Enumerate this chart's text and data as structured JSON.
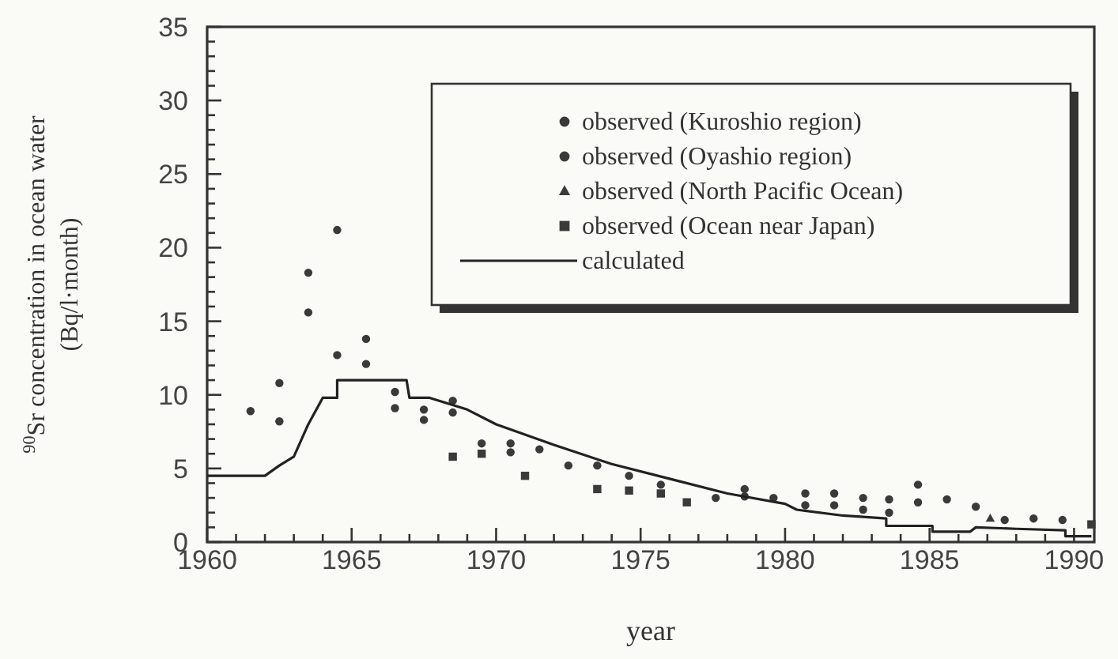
{
  "chart_data": {
    "type": "scatter",
    "xlabel": "year",
    "ylabel": "$^{90}$Sr concentration in ocean water\n(Bq/l·month)",
    "xlim": [
      1960,
      1990.7
    ],
    "ylim": [
      0,
      35
    ],
    "xticks": [
      1960,
      {
        "value": 1961,
        "label": null
      },
      {
        "value": 1962,
        "label": null
      },
      {
        "value": 1963,
        "label": null
      },
      {
        "value": 1964,
        "label": null
      },
      1965,
      {
        "value": 1966,
        "label": null
      },
      {
        "value": 1967,
        "label": null
      },
      {
        "value": 1968,
        "label": null
      },
      {
        "value": 1969,
        "label": null
      },
      1970,
      {
        "value": 1971,
        "label": null
      },
      {
        "value": 1972,
        "label": null
      },
      {
        "value": 1973,
        "label": null
      },
      {
        "value": 1974,
        "label": null
      },
      1975,
      {
        "value": 1976,
        "label": null
      },
      {
        "value": 1977,
        "label": null
      },
      {
        "value": 1978,
        "label": null
      },
      {
        "value": 1979,
        "label": null
      },
      1980,
      {
        "value": 1981,
        "label": null
      },
      {
        "value": 1982,
        "label": null
      },
      {
        "value": 1983,
        "label": null
      },
      {
        "value": 1984,
        "label": null
      },
      1985,
      {
        "value": 1986,
        "label": null
      },
      {
        "value": 1987,
        "label": null
      },
      {
        "value": 1988,
        "label": null
      },
      {
        "value": 1989,
        "label": null
      },
      1990
    ],
    "yticks": [
      0,
      {
        "value": 1,
        "label": null
      },
      {
        "value": 2,
        "label": null
      },
      {
        "value": 3,
        "label": null
      },
      {
        "value": 4,
        "label": null
      },
      5,
      {
        "value": 6,
        "label": null
      },
      {
        "value": 7,
        "label": null
      },
      {
        "value": 8,
        "label": null
      },
      {
        "value": 9,
        "label": null
      },
      10,
      {
        "value": 11,
        "label": null
      },
      {
        "value": 12,
        "label": null
      },
      {
        "value": 13,
        "label": null
      },
      {
        "value": 14,
        "label": null
      },
      15,
      {
        "value": 16,
        "label": null
      },
      {
        "value": 17,
        "label": null
      },
      {
        "value": 18,
        "label": null
      },
      {
        "value": 19,
        "label": null
      },
      20,
      {
        "value": 21,
        "label": null
      },
      {
        "value": 22,
        "label": null
      },
      {
        "value": 23,
        "label": null
      },
      {
        "value": 24,
        "label": null
      },
      25,
      {
        "value": 26,
        "label": null
      },
      {
        "value": 27,
        "label": null
      },
      {
        "value": 28,
        "label": null
      },
      {
        "value": 29,
        "label": null
      },
      30,
      {
        "value": 31,
        "label": null
      },
      {
        "value": 32,
        "label": null
      },
      {
        "value": 33,
        "label": null
      },
      {
        "value": 34,
        "label": null
      },
      35
    ],
    "grid": false,
    "legend": "top right",
    "series": [
      {
        "name": "observed (Kuroshio region)",
        "color": "#3a3a3a",
        "marker": "circle",
        "x": [
          1961.5,
          1962.5,
          1963.5,
          1964.5,
          1965.5,
          1966.5,
          1967.5,
          1968.5,
          1969.5,
          1970.5,
          1971.5,
          1972.5,
          1973.5,
          1974.6,
          1975.7,
          1977.6,
          1978.6,
          1979.6,
          1980.7,
          1981.7,
          1982.7,
          1983.6,
          1984.6,
          1985.6,
          1986.6,
          1988.6
        ],
        "values": [
          8.9,
          10.8,
          18.3,
          21.2,
          13.8,
          10.2,
          9.0,
          9.6,
          6.7,
          6.7,
          6.3,
          5.2,
          5.2,
          4.5,
          3.9,
          3.0,
          3.6,
          3.0,
          3.3,
          3.3,
          3.0,
          2.9,
          3.9,
          2.9,
          2.4,
          1.6
        ]
      },
      {
        "name": "observed (Oyashio region)",
        "color": "#3a3a3a",
        "marker": "circle",
        "x": [
          1962.5,
          1963.5,
          1964.5,
          1965.5,
          1966.5,
          1967.5,
          1968.5,
          1970.5,
          1978.6,
          1980.7,
          1981.7,
          1982.7,
          1983.6,
          1984.6,
          1987.6,
          1989.6
        ],
        "values": [
          8.2,
          15.6,
          12.7,
          12.1,
          9.1,
          8.3,
          8.8,
          6.1,
          3.1,
          2.5,
          2.5,
          2.2,
          2.0,
          2.7,
          1.5,
          1.5
        ]
      },
      {
        "name": "observed (North Pacific Ocean)",
        "color": "#3a3a3a",
        "marker": "triangle",
        "x": [
          1987.1
        ],
        "values": [
          1.6
        ]
      },
      {
        "name": "observed (Ocean near Japan)",
        "color": "#3a3a3a",
        "marker": "square",
        "x": [
          1968.5,
          1969.5,
          1971,
          1973.5,
          1974.6,
          1975.7,
          1976.6,
          1990.6
        ],
        "values": [
          5.8,
          6.0,
          4.5,
          3.6,
          3.5,
          3.3,
          2.7,
          1.2
        ]
      },
      {
        "name": "calculated",
        "color": "#222222",
        "type": "line",
        "marker": "none",
        "line_style": "solid",
        "x": [
          1960,
          1962,
          1962.5,
          1963,
          1963.5,
          1964,
          1964.5,
          1964.5,
          1966.9,
          1967,
          1967.7,
          1969,
          1970,
          1972,
          1974,
          1976,
          1978,
          1980,
          1980.4,
          1982,
          1983.5,
          1983.5,
          1985.1,
          1985.1,
          1986.4,
          1986.6,
          1988,
          1989.7,
          1989.7,
          1990.6
        ],
        "values": [
          4.5,
          4.5,
          5.2,
          5.8,
          8,
          9.8,
          9.8,
          11,
          11,
          9.8,
          9.8,
          9,
          8,
          6.6,
          5.3,
          4.3,
          3.3,
          2.6,
          2.2,
          1.8,
          1.6,
          1.1,
          1.1,
          0.7,
          0.7,
          1.0,
          0.9,
          0.8,
          0.4,
          0.4
        ]
      }
    ]
  }
}
